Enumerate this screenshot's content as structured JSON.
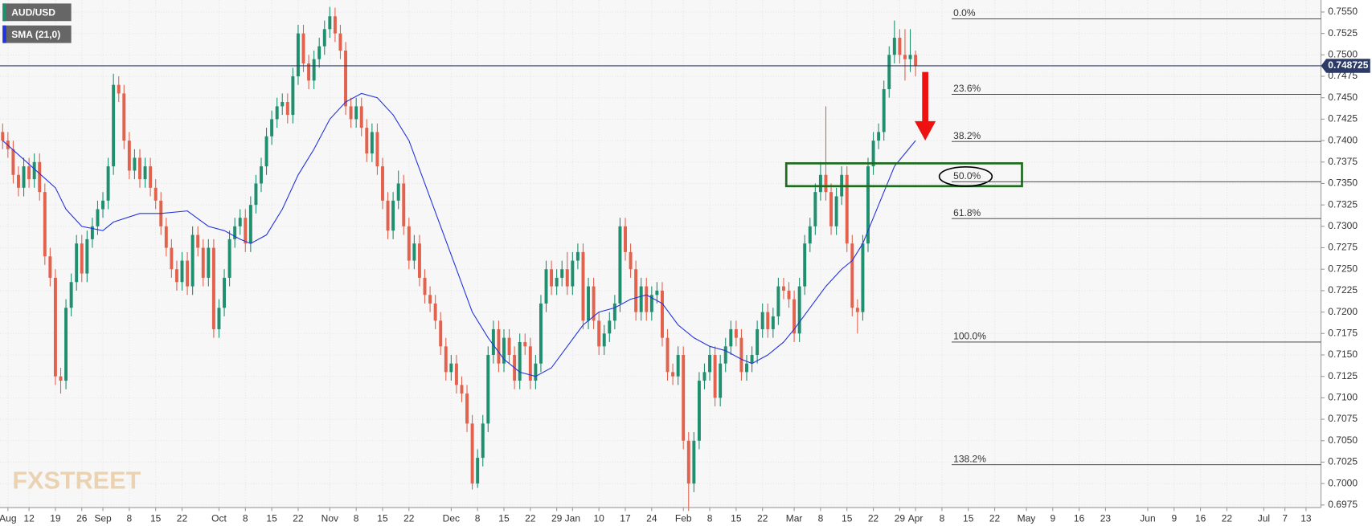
{
  "chart_data": {
    "type": "candlestick",
    "legend": [
      "AUD/USD",
      "SMA (21,0)"
    ],
    "watermark": "FXSTREET",
    "up_color": "#1f8f6f",
    "down_color": "#e2624d",
    "xlim": [
      -0.5,
      249.5
    ],
    "ylim": [
      0.6972,
      0.7564
    ],
    "grid": true,
    "xticks": [
      {
        "value": 1,
        "label": "Aug"
      },
      {
        "value": 5,
        "label": "12"
      },
      {
        "value": 10,
        "label": "19"
      },
      {
        "value": 15,
        "label": "26"
      },
      {
        "value": 19,
        "label": "Sep"
      },
      {
        "value": 24,
        "label": "8"
      },
      {
        "value": 29,
        "label": "15"
      },
      {
        "value": 34,
        "label": "22"
      },
      {
        "value": 41,
        "label": "Oct"
      },
      {
        "value": 46,
        "label": "8"
      },
      {
        "value": 51,
        "label": "15"
      },
      {
        "value": 56,
        "label": "22"
      },
      {
        "value": 62,
        "label": "Nov"
      },
      {
        "value": 67,
        "label": "8"
      },
      {
        "value": 72,
        "label": "15"
      },
      {
        "value": 77,
        "label": "22"
      },
      {
        "value": 85,
        "label": "Dec"
      },
      {
        "value": 90,
        "label": "8"
      },
      {
        "value": 95,
        "label": "15"
      },
      {
        "value": 100,
        "label": "22"
      },
      {
        "value": 105,
        "label": "29"
      },
      {
        "value": 108,
        "label": "Jan"
      },
      {
        "value": 113,
        "label": "10"
      },
      {
        "value": 118,
        "label": "17"
      },
      {
        "value": 123,
        "label": "24"
      },
      {
        "value": 129,
        "label": "Feb"
      },
      {
        "value": 134,
        "label": "8"
      },
      {
        "value": 139,
        "label": "15"
      },
      {
        "value": 144,
        "label": "22"
      },
      {
        "value": 150,
        "label": "Mar"
      },
      {
        "value": 155,
        "label": "8"
      },
      {
        "value": 160,
        "label": "15"
      },
      {
        "value": 165,
        "label": "22"
      },
      {
        "value": 170,
        "label": "29"
      },
      {
        "value": 173,
        "label": "Apr"
      },
      {
        "value": 178,
        "label": "8"
      },
      {
        "value": 183,
        "label": "15"
      },
      {
        "value": 188,
        "label": "22"
      },
      {
        "value": 194,
        "label": "May"
      },
      {
        "value": 199,
        "label": "9"
      },
      {
        "value": 204,
        "label": "16"
      },
      {
        "value": 209,
        "label": "23"
      },
      {
        "value": 217,
        "label": "Jun"
      },
      {
        "value": 222,
        "label": "9"
      },
      {
        "value": 227,
        "label": "16"
      },
      {
        "value": 232,
        "label": "22"
      },
      {
        "value": 239,
        "label": "Jul"
      },
      {
        "value": 243,
        "label": "7"
      },
      {
        "value": 247,
        "label": "13"
      }
    ],
    "yticks": [
      0.6975,
      {
        "value": 0.7,
        "label": "0.7000"
      },
      0.7025,
      {
        "value": 0.705,
        "label": "0.7050"
      },
      0.7075,
      {
        "value": 0.71,
        "label": "0.7100"
      },
      0.7125,
      {
        "value": 0.715,
        "label": "0.7150"
      },
      0.7175,
      {
        "value": 0.72,
        "label": "0.7200"
      },
      0.7225,
      {
        "value": 0.725,
        "label": "0.7250"
      },
      0.7275,
      {
        "value": 0.73,
        "label": "0.7300"
      },
      0.7325,
      {
        "value": 0.735,
        "label": "0.7350"
      },
      0.7375,
      {
        "value": 0.74,
        "label": "0.7400"
      },
      0.7425,
      {
        "value": 0.745,
        "label": "0.7450"
      },
      0.7475,
      {
        "value": 0.75,
        "label": "0.7500"
      },
      0.7525,
      {
        "value": 0.755,
        "label": "0.7550"
      }
    ],
    "last_price": 0.748725,
    "levels": [
      {
        "label": "0.0%",
        "value": 0.7542
      },
      {
        "label": "23.6%",
        "value": 0.7454
      },
      {
        "label": "38.2%",
        "value": 0.7399
      },
      {
        "label": "50.0%",
        "value": 0.7352
      },
      {
        "label": "61.8%",
        "value": 0.7309
      },
      {
        "label": "100.0%",
        "value": 0.7165
      },
      {
        "label": "138.2%",
        "value": 0.7022
      }
    ],
    "ohlc": [
      [
        0.741,
        0.742,
        0.739,
        0.74
      ],
      [
        0.74,
        0.741,
        0.738,
        0.739
      ],
      [
        0.739,
        0.74,
        0.735,
        0.736
      ],
      [
        0.736,
        0.737,
        0.7335,
        0.7345
      ],
      [
        0.7345,
        0.738,
        0.7335,
        0.737
      ],
      [
        0.737,
        0.738,
        0.7345,
        0.7355
      ],
      [
        0.7355,
        0.7385,
        0.7345,
        0.7375
      ],
      [
        0.7375,
        0.7385,
        0.733,
        0.734
      ],
      [
        0.734,
        0.735,
        0.7255,
        0.7265
      ],
      [
        0.7265,
        0.7275,
        0.723,
        0.724
      ],
      [
        0.724,
        0.725,
        0.7115,
        0.7125
      ],
      [
        0.7125,
        0.7135,
        0.7105,
        0.712
      ],
      [
        0.712,
        0.7215,
        0.711,
        0.7205
      ],
      [
        0.7205,
        0.7245,
        0.7195,
        0.7235
      ],
      [
        0.7235,
        0.729,
        0.7225,
        0.728
      ],
      [
        0.728,
        0.729,
        0.7235,
        0.7245
      ],
      [
        0.7245,
        0.7295,
        0.7235,
        0.7285
      ],
      [
        0.7285,
        0.731,
        0.7275,
        0.73
      ],
      [
        0.73,
        0.733,
        0.729,
        0.732
      ],
      [
        0.732,
        0.734,
        0.731,
        0.733
      ],
      [
        0.733,
        0.738,
        0.732,
        0.737
      ],
      [
        0.737,
        0.7478,
        0.736,
        0.7465
      ],
      [
        0.7465,
        0.7475,
        0.7445,
        0.7455
      ],
      [
        0.7455,
        0.7465,
        0.739,
        0.74
      ],
      [
        0.74,
        0.741,
        0.7355,
        0.7365
      ],
      [
        0.7365,
        0.739,
        0.7355,
        0.738
      ],
      [
        0.738,
        0.739,
        0.7345,
        0.7355
      ],
      [
        0.7355,
        0.738,
        0.7345,
        0.737
      ],
      [
        0.737,
        0.738,
        0.7335,
        0.7345
      ],
      [
        0.7345,
        0.7355,
        0.732,
        0.733
      ],
      [
        0.733,
        0.734,
        0.729,
        0.73
      ],
      [
        0.73,
        0.731,
        0.7265,
        0.7275
      ],
      [
        0.7275,
        0.7285,
        0.724,
        0.725
      ],
      [
        0.725,
        0.726,
        0.7225,
        0.7235
      ],
      [
        0.7235,
        0.727,
        0.7225,
        0.726
      ],
      [
        0.726,
        0.727,
        0.722,
        0.723
      ],
      [
        0.723,
        0.73,
        0.722,
        0.729
      ],
      [
        0.729,
        0.73,
        0.7265,
        0.7275
      ],
      [
        0.7275,
        0.7285,
        0.723,
        0.724
      ],
      [
        0.724,
        0.7285,
        0.723,
        0.7275
      ],
      [
        0.7275,
        0.7285,
        0.717,
        0.718
      ],
      [
        0.718,
        0.7215,
        0.717,
        0.7205
      ],
      [
        0.7205,
        0.725,
        0.7195,
        0.724
      ],
      [
        0.724,
        0.7295,
        0.723,
        0.7285
      ],
      [
        0.7285,
        0.731,
        0.7275,
        0.73
      ],
      [
        0.73,
        0.732,
        0.729,
        0.731
      ],
      [
        0.731,
        0.732,
        0.727,
        0.728
      ],
      [
        0.728,
        0.7335,
        0.727,
        0.7325
      ],
      [
        0.7325,
        0.736,
        0.7315,
        0.735
      ],
      [
        0.735,
        0.738,
        0.734,
        0.737
      ],
      [
        0.737,
        0.7415,
        0.736,
        0.7405
      ],
      [
        0.7405,
        0.7435,
        0.7395,
        0.7425
      ],
      [
        0.7425,
        0.745,
        0.7415,
        0.744
      ],
      [
        0.744,
        0.7455,
        0.743,
        0.7445
      ],
      [
        0.7445,
        0.7455,
        0.742,
        0.743
      ],
      [
        0.743,
        0.7485,
        0.742,
        0.7475
      ],
      [
        0.7475,
        0.7535,
        0.7465,
        0.7525
      ],
      [
        0.7525,
        0.7535,
        0.748,
        0.749
      ],
      [
        0.749,
        0.75,
        0.746,
        0.747
      ],
      [
        0.747,
        0.7505,
        0.746,
        0.7495
      ],
      [
        0.7495,
        0.752,
        0.7485,
        0.751
      ],
      [
        0.751,
        0.754,
        0.75,
        0.753
      ],
      [
        0.753,
        0.7556,
        0.752,
        0.7545
      ],
      [
        0.7545,
        0.7555,
        0.7515,
        0.7525
      ],
      [
        0.7525,
        0.7535,
        0.7495,
        0.7505
      ],
      [
        0.7505,
        0.7515,
        0.743,
        0.744
      ],
      [
        0.744,
        0.745,
        0.7415,
        0.7425
      ],
      [
        0.7425,
        0.745,
        0.7415,
        0.744
      ],
      [
        0.744,
        0.745,
        0.7405,
        0.7415
      ],
      [
        0.7415,
        0.7425,
        0.7375,
        0.7385
      ],
      [
        0.7385,
        0.742,
        0.7375,
        0.741
      ],
      [
        0.741,
        0.742,
        0.736,
        0.737
      ],
      [
        0.737,
        0.738,
        0.732,
        0.733
      ],
      [
        0.733,
        0.734,
        0.7285,
        0.7295
      ],
      [
        0.7295,
        0.734,
        0.7285,
        0.733
      ],
      [
        0.733,
        0.7365,
        0.732,
        0.735
      ],
      [
        0.735,
        0.736,
        0.729,
        0.73
      ],
      [
        0.73,
        0.731,
        0.725,
        0.726
      ],
      [
        0.726,
        0.729,
        0.725,
        0.728
      ],
      [
        0.728,
        0.729,
        0.723,
        0.724
      ],
      [
        0.724,
        0.725,
        0.721,
        0.722
      ],
      [
        0.722,
        0.723,
        0.72,
        0.721
      ],
      [
        0.721,
        0.722,
        0.718,
        0.719
      ],
      [
        0.719,
        0.72,
        0.715,
        0.716
      ],
      [
        0.716,
        0.717,
        0.712,
        0.713
      ],
      [
        0.713,
        0.715,
        0.712,
        0.714
      ],
      [
        0.714,
        0.715,
        0.7105,
        0.7115
      ],
      [
        0.7115,
        0.7125,
        0.7095,
        0.7105
      ],
      [
        0.7105,
        0.7115,
        0.706,
        0.707
      ],
      [
        0.707,
        0.708,
        0.6993,
        0.7
      ],
      [
        0.7,
        0.704,
        0.6995,
        0.703
      ],
      [
        0.703,
        0.708,
        0.702,
        0.707
      ],
      [
        0.707,
        0.716,
        0.706,
        0.715
      ],
      [
        0.715,
        0.719,
        0.714,
        0.718
      ],
      [
        0.718,
        0.719,
        0.713,
        0.714
      ],
      [
        0.714,
        0.718,
        0.713,
        0.717
      ],
      [
        0.717,
        0.718,
        0.714,
        0.715
      ],
      [
        0.715,
        0.716,
        0.711,
        0.712
      ],
      [
        0.712,
        0.7175,
        0.711,
        0.7165
      ],
      [
        0.7165,
        0.7175,
        0.715,
        0.716
      ],
      [
        0.716,
        0.717,
        0.711,
        0.712
      ],
      [
        0.712,
        0.715,
        0.711,
        0.714
      ],
      [
        0.714,
        0.722,
        0.713,
        0.721
      ],
      [
        0.721,
        0.726,
        0.72,
        0.725
      ],
      [
        0.725,
        0.726,
        0.722,
        0.723
      ],
      [
        0.723,
        0.725,
        0.722,
        0.724
      ],
      [
        0.724,
        0.726,
        0.723,
        0.725
      ],
      [
        0.725,
        0.727,
        0.722,
        0.723
      ],
      [
        0.723,
        0.727,
        0.722,
        0.726
      ],
      [
        0.726,
        0.728,
        0.725,
        0.727
      ],
      [
        0.727,
        0.728,
        0.718,
        0.719
      ],
      [
        0.719,
        0.724,
        0.718,
        0.723
      ],
      [
        0.723,
        0.724,
        0.718,
        0.719
      ],
      [
        0.719,
        0.72,
        0.715,
        0.716
      ],
      [
        0.716,
        0.7185,
        0.715,
        0.7175
      ],
      [
        0.7175,
        0.72,
        0.7165,
        0.719
      ],
      [
        0.719,
        0.722,
        0.718,
        0.721
      ],
      [
        0.721,
        0.731,
        0.72,
        0.73
      ],
      [
        0.73,
        0.731,
        0.726,
        0.727
      ],
      [
        0.727,
        0.728,
        0.724,
        0.725
      ],
      [
        0.725,
        0.726,
        0.719,
        0.72
      ],
      [
        0.72,
        0.724,
        0.719,
        0.723
      ],
      [
        0.723,
        0.724,
        0.719,
        0.72
      ],
      [
        0.72,
        0.723,
        0.719,
        0.722
      ],
      [
        0.722,
        0.7235,
        0.721,
        0.7225
      ],
      [
        0.7225,
        0.7235,
        0.716,
        0.717
      ],
      [
        0.717,
        0.718,
        0.712,
        0.713
      ],
      [
        0.713,
        0.714,
        0.7115,
        0.7125
      ],
      [
        0.7125,
        0.716,
        0.7115,
        0.715
      ],
      [
        0.715,
        0.716,
        0.704,
        0.705
      ],
      [
        0.705,
        0.706,
        0.6968,
        0.7
      ],
      [
        0.7,
        0.706,
        0.699,
        0.705
      ],
      [
        0.705,
        0.713,
        0.704,
        0.712
      ],
      [
        0.712,
        0.714,
        0.711,
        0.713
      ],
      [
        0.713,
        0.716,
        0.712,
        0.715
      ],
      [
        0.715,
        0.716,
        0.709,
        0.71
      ],
      [
        0.71,
        0.715,
        0.709,
        0.714
      ],
      [
        0.714,
        0.717,
        0.713,
        0.716
      ],
      [
        0.716,
        0.719,
        0.715,
        0.718
      ],
      [
        0.718,
        0.719,
        0.716,
        0.717
      ],
      [
        0.717,
        0.718,
        0.712,
        0.713
      ],
      [
        0.713,
        0.715,
        0.712,
        0.714
      ],
      [
        0.714,
        0.716,
        0.713,
        0.715
      ],
      [
        0.715,
        0.719,
        0.714,
        0.718
      ],
      [
        0.718,
        0.721,
        0.717,
        0.72
      ],
      [
        0.72,
        0.721,
        0.717,
        0.718
      ],
      [
        0.718,
        0.7205,
        0.717,
        0.7195
      ],
      [
        0.7195,
        0.724,
        0.7185,
        0.723
      ],
      [
        0.723,
        0.724,
        0.7215,
        0.7225
      ],
      [
        0.7225,
        0.7235,
        0.7205,
        0.7215
      ],
      [
        0.7215,
        0.7225,
        0.7165,
        0.7175
      ],
      [
        0.7175,
        0.724,
        0.7165,
        0.723
      ],
      [
        0.723,
        0.729,
        0.722,
        0.728
      ],
      [
        0.728,
        0.731,
        0.727,
        0.73
      ],
      [
        0.73,
        0.735,
        0.729,
        0.734
      ],
      [
        0.734,
        0.7375,
        0.733,
        0.736
      ],
      [
        0.736,
        0.744,
        0.733,
        0.734
      ],
      [
        0.734,
        0.735,
        0.729,
        0.73
      ],
      [
        0.73,
        0.7345,
        0.729,
        0.7335
      ],
      [
        0.7335,
        0.737,
        0.7325,
        0.736
      ],
      [
        0.736,
        0.737,
        0.727,
        0.728
      ],
      [
        0.728,
        0.729,
        0.7195,
        0.7205
      ],
      [
        0.7205,
        0.7215,
        0.7175,
        0.72
      ],
      [
        0.72,
        0.729,
        0.719,
        0.728
      ],
      [
        0.728,
        0.738,
        0.727,
        0.737
      ],
      [
        0.737,
        0.741,
        0.736,
        0.74
      ],
      [
        0.74,
        0.742,
        0.739,
        0.741
      ],
      [
        0.741,
        0.747,
        0.74,
        0.746
      ],
      [
        0.746,
        0.751,
        0.745,
        0.75
      ],
      [
        0.75,
        0.754,
        0.749,
        0.752
      ],
      [
        0.752,
        0.753,
        0.749,
        0.75
      ],
      [
        0.75,
        0.753,
        0.747,
        0.7495
      ],
      [
        0.7495,
        0.753,
        0.748,
        0.75
      ],
      [
        0.75,
        0.7505,
        0.7475,
        0.7487
      ]
    ],
    "sma": {
      "color": "#2233dd",
      "x": [
        0,
        10,
        12,
        15,
        19,
        21,
        26,
        30,
        35,
        39,
        42,
        45,
        47,
        50,
        53,
        56,
        59,
        62,
        65,
        68,
        71,
        74,
        77,
        80,
        83,
        86,
        89,
        92,
        95,
        98,
        101,
        104,
        107,
        110,
        113,
        116,
        119,
        122,
        125,
        128,
        131,
        134,
        137,
        140,
        142,
        145,
        148,
        150,
        153,
        156,
        159,
        161,
        163,
        165,
        167,
        169,
        171,
        173
      ],
      "values": [
        0.74,
        0.7345,
        0.732,
        0.73,
        0.7295,
        0.7305,
        0.7315,
        0.7315,
        0.7318,
        0.73,
        0.7295,
        0.7285,
        0.728,
        0.729,
        0.732,
        0.736,
        0.739,
        0.7425,
        0.7445,
        0.7455,
        0.745,
        0.743,
        0.74,
        0.735,
        0.73,
        0.725,
        0.72,
        0.717,
        0.7145,
        0.713,
        0.7125,
        0.7135,
        0.716,
        0.7185,
        0.72,
        0.7205,
        0.7215,
        0.722,
        0.721,
        0.7185,
        0.717,
        0.716,
        0.7155,
        0.7145,
        0.714,
        0.715,
        0.7165,
        0.718,
        0.7205,
        0.723,
        0.725,
        0.726,
        0.728,
        0.731,
        0.734,
        0.737,
        0.7385,
        0.74
      ]
    }
  }
}
